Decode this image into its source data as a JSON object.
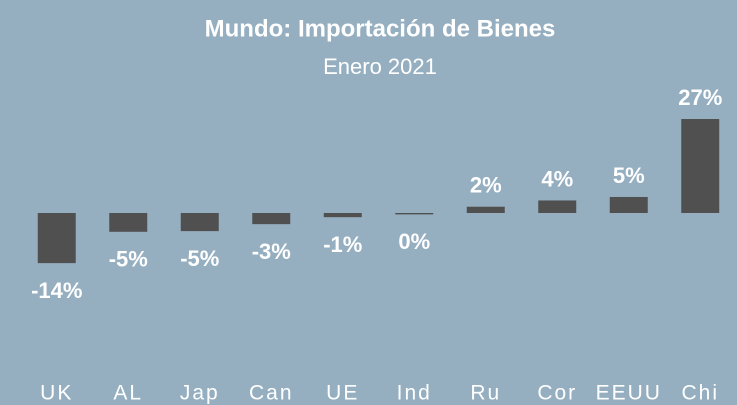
{
  "chart_data": {
    "type": "bar",
    "title": "Mundo: Importación  de Bienes",
    "subtitle": "Enero 2021",
    "categories": [
      "UK",
      "AL",
      "Jap",
      "Can",
      "UE",
      "Ind",
      "Ru",
      "Cor",
      "EEUU",
      "Chi"
    ],
    "values": [
      -14.4,
      -5.4,
      -5.2,
      -3.2,
      -1.2,
      -0.4,
      1.8,
      3.6,
      4.6,
      27
    ],
    "value_labels": [
      "-14%",
      "-5%",
      "-5%",
      "-3%",
      "-1%",
      "0%",
      "2%",
      "4%",
      "5%",
      "27%"
    ],
    "color": "#505050"
  }
}
